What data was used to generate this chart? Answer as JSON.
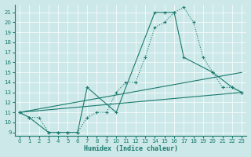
{
  "xlabel": "Humidex (Indice chaleur)",
  "bg_color": "#cce8e8",
  "line_color": "#1a7a6e",
  "xlim": [
    -0.5,
    23.5
  ],
  "ylim": [
    9,
    21.5
  ],
  "yticks": [
    9,
    10,
    11,
    12,
    13,
    14,
    15,
    16,
    17,
    18,
    19,
    20,
    21
  ],
  "xticks": [
    0,
    1,
    2,
    3,
    4,
    5,
    6,
    7,
    8,
    9,
    10,
    11,
    12,
    13,
    14,
    15,
    16,
    17,
    18,
    19,
    20,
    21,
    22,
    23
  ],
  "line1_dotted": {
    "x": [
      0,
      1,
      2,
      3,
      4,
      5,
      6,
      7,
      8,
      9,
      10,
      11,
      12,
      13,
      14,
      15,
      16,
      17,
      18,
      19,
      20,
      21,
      22,
      23
    ],
    "y": [
      11,
      10.5,
      10.5,
      9,
      9,
      9,
      9,
      10.5,
      11,
      11,
      13,
      14,
      14,
      16.5,
      19.5,
      20,
      21,
      21.5,
      20,
      16.5,
      15,
      13.5,
      13.5,
      13
    ]
  },
  "line2_marked": {
    "x": [
      0,
      1,
      3,
      4,
      5,
      6,
      7,
      10,
      14,
      15,
      16,
      17,
      20,
      22,
      23
    ],
    "y": [
      11,
      10.5,
      9,
      9,
      9,
      9,
      13.5,
      11,
      21,
      21,
      21,
      16.5,
      15,
      13.5,
      13
    ]
  },
  "line3_smooth": {
    "x": [
      0,
      23
    ],
    "y": [
      11,
      15
    ]
  },
  "line4_smooth": {
    "x": [
      0,
      23
    ],
    "y": [
      11,
      13
    ]
  }
}
